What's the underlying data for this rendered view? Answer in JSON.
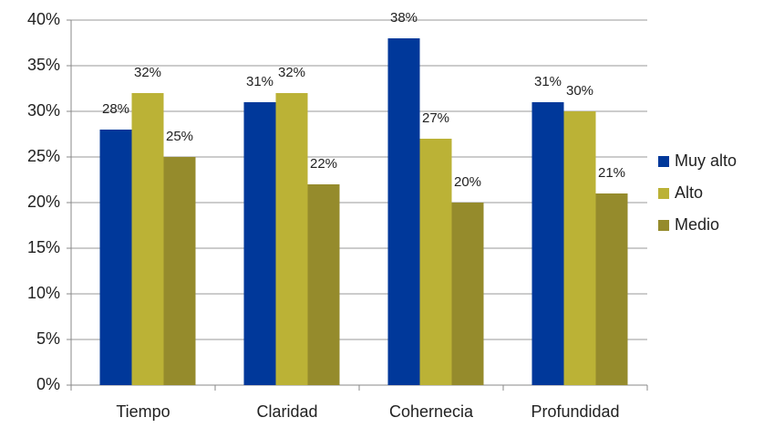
{
  "chart_data": {
    "type": "bar",
    "categories": [
      "Tiempo",
      "Claridad",
      "Cohernecia",
      "Profundidad"
    ],
    "series": [
      {
        "name": "Muy alto",
        "color": "#00389a",
        "values": [
          28,
          31,
          38,
          31
        ],
        "value_labels": [
          "28%",
          "31%",
          "38%",
          "31%"
        ]
      },
      {
        "name": "Alto",
        "color": "#bbb236",
        "values": [
          32,
          32,
          27,
          30
        ],
        "value_labels": [
          "32%",
          "32%",
          "27%",
          "30%"
        ]
      },
      {
        "name": "Medio",
        "color": "#958b2c",
        "values": [
          25,
          22,
          20,
          21
        ],
        "value_labels": [
          "25%",
          "22%",
          "20%",
          "21%"
        ]
      }
    ],
    "ylim": [
      0,
      40
    ],
    "yticks": [
      {
        "value": 0,
        "label": "0%"
      },
      {
        "value": 5,
        "label": "5%"
      },
      {
        "value": 10,
        "label": "10%"
      },
      {
        "value": 15,
        "label": "15%"
      },
      {
        "value": 20,
        "label": "20%"
      },
      {
        "value": 25,
        "label": "25%"
      },
      {
        "value": 30,
        "label": "30%"
      },
      {
        "value": 35,
        "label": "35%"
      },
      {
        "value": 40,
        "label": "40%"
      }
    ],
    "grid": true,
    "legend": "right"
  }
}
